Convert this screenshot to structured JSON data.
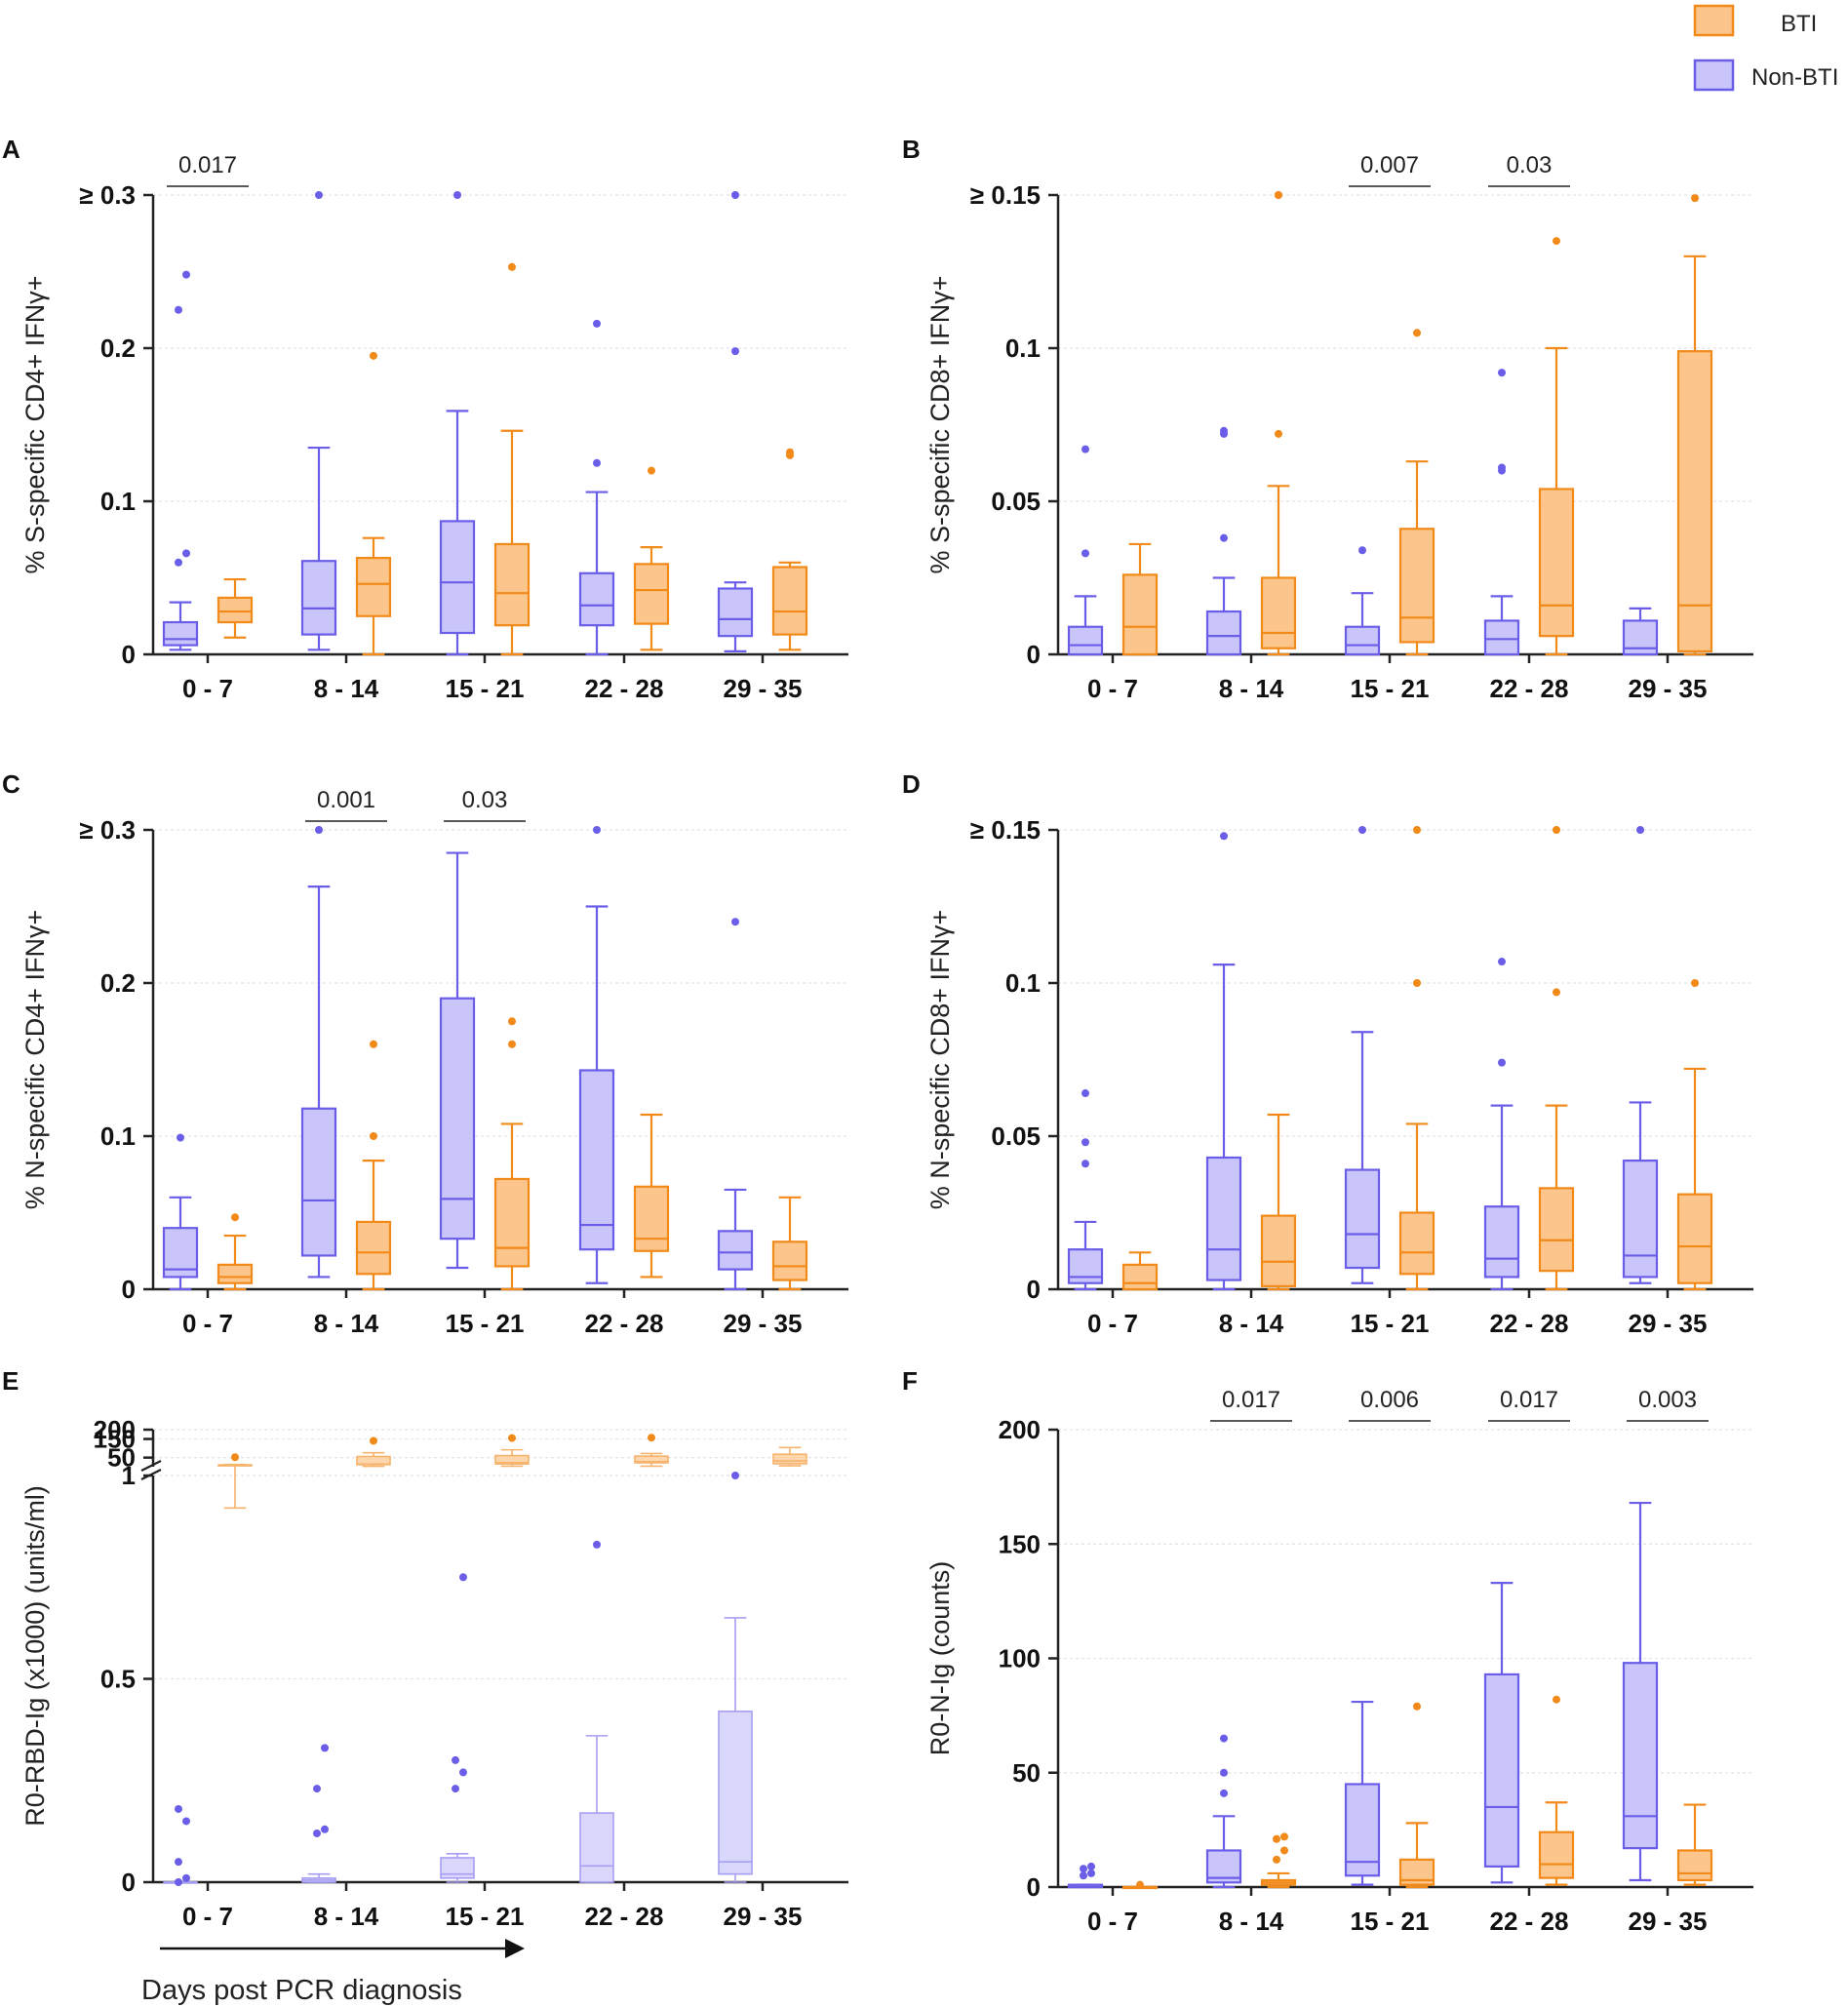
{
  "legend": {
    "items": [
      {
        "label": "BTI",
        "color": "#f28a1a",
        "fill": "#fcc58c"
      },
      {
        "label": "Non-BTI",
        "color": "#6a5ee8",
        "fill": "#c9c5fb"
      }
    ]
  },
  "x_caption": "Days post PCR diagnosis",
  "colors": {
    "bti": "#f28a1a",
    "bti_fill": "#fcc58c",
    "nonbti": "#6a5ee8",
    "nonbti_fill": "#c9c5fb",
    "axis": "#222222"
  },
  "chart_data": [
    {
      "type": "box",
      "panel": "A",
      "ylabel": "% S-specific CD4+ IFNγ+",
      "ylim": [
        0,
        0.3
      ],
      "yticks": [
        {
          "v": 0,
          "label": "0"
        },
        {
          "v": 0.1,
          "label": "0.1"
        },
        {
          "v": 0.2,
          "label": "0.2"
        },
        {
          "v": 0.3,
          "label": "≥ 0.3"
        }
      ],
      "categories": [
        "0 - 7",
        "8 - 14",
        "15 - 21",
        "22 - 28",
        "29 - 35"
      ],
      "pvalues": [
        {
          "cat": 0,
          "label": "0.017"
        }
      ],
      "series": [
        {
          "name": "Non-BTI",
          "boxes": [
            {
              "min": 0.003,
              "q1": 0.006,
              "median": 0.01,
              "q3": 0.021,
              "max": 0.034,
              "outliers": [
                0.06,
                0.066,
                0.225,
                0.248
              ]
            },
            {
              "min": 0.003,
              "q1": 0.013,
              "median": 0.03,
              "q3": 0.061,
              "max": 0.135,
              "outliers": [
                0.3
              ]
            },
            {
              "min": 0.0,
              "q1": 0.014,
              "median": 0.047,
              "q3": 0.087,
              "max": 0.159,
              "outliers": [
                0.3
              ]
            },
            {
              "min": 0.0,
              "q1": 0.019,
              "median": 0.032,
              "q3": 0.053,
              "max": 0.106,
              "outliers": [
                0.125,
                0.216
              ]
            },
            {
              "min": 0.002,
              "q1": 0.012,
              "median": 0.023,
              "q3": 0.043,
              "max": 0.047,
              "outliers": [
                0.198,
                0.3
              ]
            }
          ]
        },
        {
          "name": "BTI",
          "boxes": [
            {
              "min": 0.011,
              "q1": 0.021,
              "median": 0.028,
              "q3": 0.037,
              "max": 0.049,
              "outliers": []
            },
            {
              "min": 0.0,
              "q1": 0.025,
              "median": 0.046,
              "q3": 0.063,
              "max": 0.076,
              "outliers": [
                0.195
              ]
            },
            {
              "min": 0.0,
              "q1": 0.019,
              "median": 0.04,
              "q3": 0.072,
              "max": 0.146,
              "outliers": [
                0.253
              ]
            },
            {
              "min": 0.003,
              "q1": 0.02,
              "median": 0.042,
              "q3": 0.059,
              "max": 0.07,
              "outliers": [
                0.12
              ]
            },
            {
              "min": 0.003,
              "q1": 0.013,
              "median": 0.028,
              "q3": 0.057,
              "max": 0.06,
              "outliers": [
                0.13,
                0.132
              ]
            }
          ]
        }
      ]
    },
    {
      "type": "box",
      "panel": "B",
      "ylabel": "% S-specific CD8+ IFNγ+",
      "ylim": [
        0,
        0.15
      ],
      "yticks": [
        {
          "v": 0,
          "label": "0"
        },
        {
          "v": 0.05,
          "label": "0.05"
        },
        {
          "v": 0.1,
          "label": "0.1"
        },
        {
          "v": 0.15,
          "label": "≥ 0.15"
        }
      ],
      "categories": [
        "0 - 7",
        "8 - 14",
        "15 - 21",
        "22 - 28",
        "29 - 35"
      ],
      "pvalues": [
        {
          "cat": 2,
          "label": "0.007"
        },
        {
          "cat": 3,
          "label": "0.03"
        }
      ],
      "series": [
        {
          "name": "Non-BTI",
          "boxes": [
            {
              "min": 0.0,
              "q1": 0.0,
              "median": 0.003,
              "q3": 0.009,
              "max": 0.019,
              "outliers": [
                0.033,
                0.067
              ]
            },
            {
              "min": 0.0,
              "q1": 0.0,
              "median": 0.006,
              "q3": 0.014,
              "max": 0.025,
              "outliers": [
                0.038,
                0.072,
                0.073
              ]
            },
            {
              "min": 0.0,
              "q1": 0.0,
              "median": 0.003,
              "q3": 0.009,
              "max": 0.02,
              "outliers": [
                0.034
              ]
            },
            {
              "min": 0.0,
              "q1": 0.0,
              "median": 0.005,
              "q3": 0.011,
              "max": 0.019,
              "outliers": [
                0.06,
                0.061,
                0.092
              ]
            },
            {
              "min": 0.0,
              "q1": 0.0,
              "median": 0.002,
              "q3": 0.011,
              "max": 0.015,
              "outliers": []
            }
          ]
        },
        {
          "name": "BTI",
          "boxes": [
            {
              "min": 0.0,
              "q1": 0.0,
              "median": 0.009,
              "q3": 0.026,
              "max": 0.036,
              "outliers": []
            },
            {
              "min": 0.0,
              "q1": 0.002,
              "median": 0.007,
              "q3": 0.025,
              "max": 0.055,
              "outliers": [
                0.072,
                0.15,
                0.15
              ]
            },
            {
              "min": 0.0,
              "q1": 0.004,
              "median": 0.012,
              "q3": 0.041,
              "max": 0.063,
              "outliers": [
                0.105
              ]
            },
            {
              "min": 0.0,
              "q1": 0.006,
              "median": 0.016,
              "q3": 0.054,
              "max": 0.1,
              "outliers": [
                0.135
              ]
            },
            {
              "min": 0.0,
              "q1": 0.001,
              "median": 0.016,
              "q3": 0.099,
              "max": 0.13,
              "outliers": [
                0.149
              ]
            }
          ]
        }
      ]
    },
    {
      "type": "box",
      "panel": "C",
      "ylabel": "% N-specific CD4+ IFNγ+",
      "ylim": [
        0,
        0.3
      ],
      "yticks": [
        {
          "v": 0,
          "label": "0"
        },
        {
          "v": 0.1,
          "label": "0.1"
        },
        {
          "v": 0.2,
          "label": "0.2"
        },
        {
          "v": 0.3,
          "label": "≥ 0.3"
        }
      ],
      "categories": [
        "0 - 7",
        "8 - 14",
        "15 - 21",
        "22 - 28",
        "29 - 35"
      ],
      "pvalues": [
        {
          "cat": 1,
          "label": "0.001"
        },
        {
          "cat": 2,
          "label": "0.03"
        }
      ],
      "series": [
        {
          "name": "Non-BTI",
          "boxes": [
            {
              "min": 0.0,
              "q1": 0.008,
              "median": 0.013,
              "q3": 0.04,
              "max": 0.06,
              "outliers": [
                0.099
              ]
            },
            {
              "min": 0.008,
              "q1": 0.022,
              "median": 0.058,
              "q3": 0.118,
              "max": 0.263,
              "outliers": [
                0.3
              ]
            },
            {
              "min": 0.014,
              "q1": 0.033,
              "median": 0.059,
              "q3": 0.19,
              "max": 0.285,
              "outliers": []
            },
            {
              "min": 0.004,
              "q1": 0.026,
              "median": 0.042,
              "q3": 0.143,
              "max": 0.25,
              "outliers": [
                0.3
              ]
            },
            {
              "min": 0.0,
              "q1": 0.013,
              "median": 0.024,
              "q3": 0.038,
              "max": 0.065,
              "outliers": [
                0.24
              ]
            }
          ]
        },
        {
          "name": "BTI",
          "boxes": [
            {
              "min": 0.0,
              "q1": 0.004,
              "median": 0.008,
              "q3": 0.016,
              "max": 0.035,
              "outliers": [
                0.047
              ]
            },
            {
              "min": 0.0,
              "q1": 0.01,
              "median": 0.024,
              "q3": 0.044,
              "max": 0.084,
              "outliers": [
                0.1,
                0.16
              ]
            },
            {
              "min": 0.0,
              "q1": 0.015,
              "median": 0.027,
              "q3": 0.072,
              "max": 0.108,
              "outliers": [
                0.16,
                0.175
              ]
            },
            {
              "min": 0.008,
              "q1": 0.025,
              "median": 0.033,
              "q3": 0.067,
              "max": 0.114,
              "outliers": []
            },
            {
              "min": 0.0,
              "q1": 0.006,
              "median": 0.015,
              "q3": 0.031,
              "max": 0.06,
              "outliers": []
            }
          ]
        }
      ]
    },
    {
      "type": "box",
      "panel": "D",
      "ylabel": "% N-specific CD8+ IFNγ+",
      "ylim": [
        0,
        0.15
      ],
      "yticks": [
        {
          "v": 0,
          "label": "0"
        },
        {
          "v": 0.05,
          "label": "0.05"
        },
        {
          "v": 0.1,
          "label": "0.1"
        },
        {
          "v": 0.15,
          "label": "≥ 0.15"
        }
      ],
      "categories": [
        "0 - 7",
        "8 - 14",
        "15 - 21",
        "22 - 28",
        "29 - 35"
      ],
      "pvalues": [],
      "series": [
        {
          "name": "Non-BTI",
          "boxes": [
            {
              "min": 0.0,
              "q1": 0.002,
              "median": 0.004,
              "q3": 0.013,
              "max": 0.022,
              "outliers": [
                0.041,
                0.048,
                0.064
              ]
            },
            {
              "min": 0.0,
              "q1": 0.003,
              "median": 0.013,
              "q3": 0.043,
              "max": 0.106,
              "outliers": [
                0.148
              ]
            },
            {
              "min": 0.002,
              "q1": 0.007,
              "median": 0.018,
              "q3": 0.039,
              "max": 0.084,
              "outliers": [
                0.15
              ]
            },
            {
              "min": 0.0,
              "q1": 0.004,
              "median": 0.01,
              "q3": 0.027,
              "max": 0.06,
              "outliers": [
                0.074,
                0.107
              ]
            },
            {
              "min": 0.002,
              "q1": 0.004,
              "median": 0.011,
              "q3": 0.042,
              "max": 0.061,
              "outliers": [
                0.15
              ]
            }
          ]
        },
        {
          "name": "BTI",
          "boxes": [
            {
              "min": 0.0,
              "q1": 0.0,
              "median": 0.002,
              "q3": 0.008,
              "max": 0.012,
              "outliers": []
            },
            {
              "min": 0.0,
              "q1": 0.001,
              "median": 0.009,
              "q3": 0.024,
              "max": 0.057,
              "outliers": []
            },
            {
              "min": 0.0,
              "q1": 0.005,
              "median": 0.012,
              "q3": 0.025,
              "max": 0.054,
              "outliers": [
                0.1,
                0.15
              ]
            },
            {
              "min": 0.0,
              "q1": 0.006,
              "median": 0.016,
              "q3": 0.033,
              "max": 0.06,
              "outliers": [
                0.097,
                0.15
              ]
            },
            {
              "min": 0.0,
              "q1": 0.002,
              "median": 0.014,
              "q3": 0.031,
              "max": 0.072,
              "outliers": [
                0.1
              ]
            }
          ]
        }
      ]
    },
    {
      "type": "box",
      "panel": "E",
      "ylabel": "R0-RBD-Ig (x1000) (units/ml)",
      "broken_axis": true,
      "lower_ylim": [
        0,
        1
      ],
      "upper_ylim": [
        1,
        200
      ],
      "yticks": [
        {
          "v": 0,
          "label": "0"
        },
        {
          "v": 0.5,
          "label": "0.5"
        },
        {
          "v": 1,
          "label": "1"
        },
        {
          "v": 50,
          "label": "50"
        },
        {
          "v": 150,
          "label": "150"
        },
        {
          "v": 200,
          "label": "200"
        }
      ],
      "categories": [
        "0 - 7",
        "8 - 14",
        "15 - 21",
        "22 - 28",
        "29 - 35"
      ],
      "pvalues": [],
      "series": [
        {
          "name": "Non-BTI",
          "boxes": [
            {
              "min": 0.0,
              "q1": 0.0,
              "median": 0.0,
              "q3": 0.0,
              "max": 0.0,
              "outliers": [
                0.0,
                0.01,
                0.05,
                0.15,
                0.18
              ]
            },
            {
              "min": 0.0,
              "q1": 0.0,
              "median": 0.005,
              "q3": 0.01,
              "max": 0.02,
              "outliers": [
                0.12,
                0.13,
                0.23,
                0.33
              ]
            },
            {
              "min": 0.0,
              "q1": 0.01,
              "median": 0.02,
              "q3": 0.06,
              "max": 0.07,
              "outliers": [
                0.23,
                0.27,
                0.3,
                0.75
              ]
            },
            {
              "min": 0.0,
              "q1": 0.0,
              "median": 0.04,
              "q3": 0.17,
              "max": 0.36,
              "outliers": [
                0.83
              ]
            },
            {
              "min": 0.0,
              "q1": 0.02,
              "median": 0.05,
              "q3": 0.42,
              "max": 0.65,
              "outliers": [
                1.0
              ]
            }
          ]
        },
        {
          "name": "BTI",
          "boxes": [
            {
              "min": 0.92,
              "q1": 6,
              "median": 8,
              "q3": 11,
              "max": 13,
              "outliers": [
                52
              ]
            },
            {
              "min": 3,
              "q1": 12,
              "median": 15,
              "q3": 56,
              "max": 76,
              "outliers": [
                140
              ]
            },
            {
              "min": 4,
              "q1": 16,
              "median": 23,
              "q3": 61,
              "max": 92,
              "outliers": [
                155
              ]
            },
            {
              "min": 4,
              "q1": 22,
              "median": 28,
              "q3": 58,
              "max": 72,
              "outliers": [
                157
              ]
            },
            {
              "min": 6,
              "q1": 17,
              "median": 32,
              "q3": 68,
              "max": 104,
              "outliers": []
            }
          ]
        }
      ]
    },
    {
      "type": "box",
      "panel": "F",
      "ylabel": "R0-N-Ig (counts)",
      "ylim": [
        0,
        200
      ],
      "yticks": [
        {
          "v": 0,
          "label": "0"
        },
        {
          "v": 50,
          "label": "50"
        },
        {
          "v": 100,
          "label": "100"
        },
        {
          "v": 150,
          "label": "150"
        },
        {
          "v": 200,
          "label": "200"
        }
      ],
      "categories": [
        "0 - 7",
        "8 - 14",
        "15 - 21",
        "22 - 28",
        "29 - 35"
      ],
      "pvalues": [
        {
          "cat": 1,
          "label": "0.017"
        },
        {
          "cat": 2,
          "label": "0.006"
        },
        {
          "cat": 3,
          "label": "0.017"
        },
        {
          "cat": 4,
          "label": "0.003"
        }
      ],
      "series": [
        {
          "name": "Non-BTI",
          "boxes": [
            {
              "min": 0,
              "q1": 0,
              "median": 0,
              "q3": 1,
              "max": 1,
              "outliers": [
                5,
                6,
                8,
                9
              ]
            },
            {
              "min": 0,
              "q1": 2,
              "median": 4,
              "q3": 16,
              "max": 31,
              "outliers": [
                41,
                50,
                65
              ]
            },
            {
              "min": 1,
              "q1": 5,
              "median": 11,
              "q3": 45,
              "max": 81,
              "outliers": []
            },
            {
              "min": 2,
              "q1": 9,
              "median": 35,
              "q3": 93,
              "max": 133,
              "outliers": []
            },
            {
              "min": 3,
              "q1": 17,
              "median": 31,
              "q3": 98,
              "max": 168,
              "outliers": []
            }
          ]
        },
        {
          "name": "BTI",
          "boxes": [
            {
              "min": 0,
              "q1": 0,
              "median": 0,
              "q3": 0,
              "max": 0,
              "outliers": [
                1
              ]
            },
            {
              "min": 0,
              "q1": 1,
              "median": 2,
              "q3": 3,
              "max": 6,
              "outliers": [
                12,
                16,
                21,
                22
              ]
            },
            {
              "min": 0,
              "q1": 1,
              "median": 3,
              "q3": 12,
              "max": 28,
              "outliers": [
                79
              ]
            },
            {
              "min": 1,
              "q1": 4,
              "median": 10,
              "q3": 24,
              "max": 37,
              "outliers": [
                82
              ]
            },
            {
              "min": 1,
              "q1": 3,
              "median": 6,
              "q3": 16,
              "max": 36,
              "outliers": []
            }
          ]
        }
      ]
    }
  ]
}
